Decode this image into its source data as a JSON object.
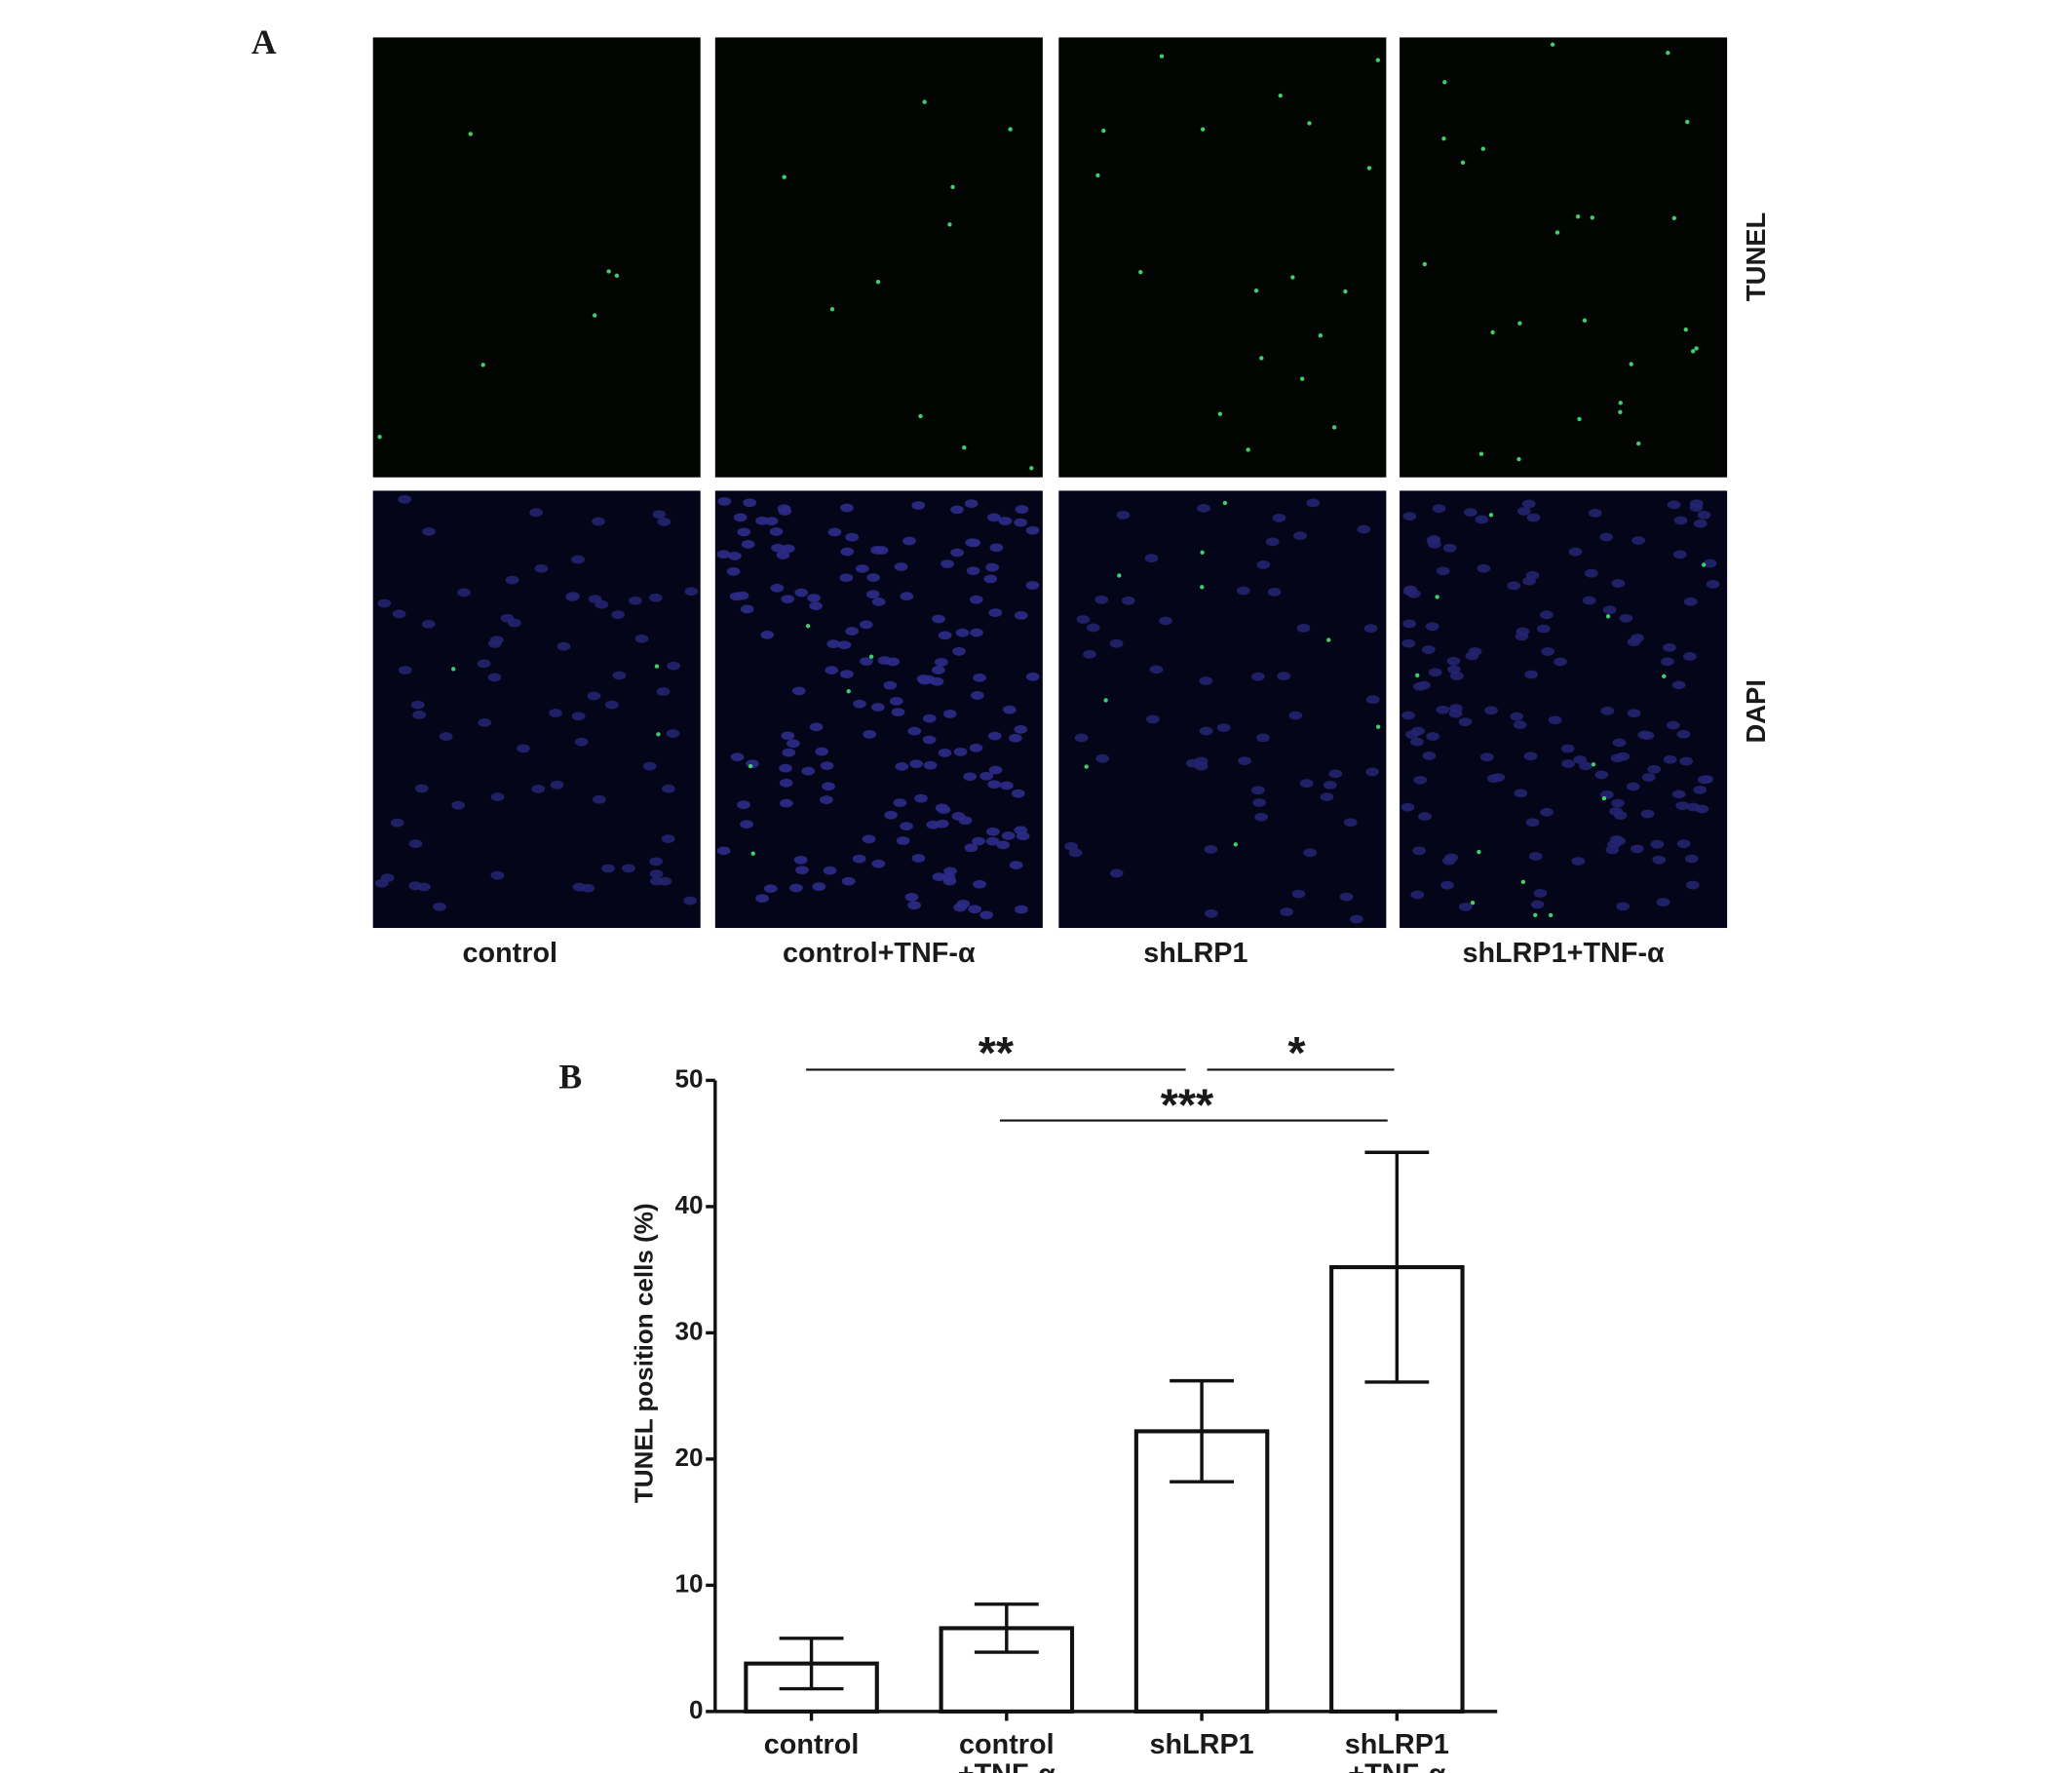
{
  "panel_labels": [
    "A",
    "B"
  ],
  "panel_a": {
    "row_labels": [
      "TUNEL",
      "DAPI"
    ],
    "column_labels": [
      "control",
      "control+TNF-α",
      "shLRP1",
      "shLRP1+TNF-α"
    ]
  },
  "chart_data": {
    "type": "bar",
    "categories": [
      [
        "control"
      ],
      [
        "control",
        "+TNF-α"
      ],
      [
        "shLRP1"
      ],
      [
        "shLRP1",
        "+TNF-α"
      ]
    ],
    "values": [
      3.8,
      6.6,
      22.2,
      35.2
    ],
    "errors": [
      2.0,
      1.9,
      4.0,
      9.1
    ],
    "color": "#ffffff",
    "y_label": "TUNEL position cells (%)",
    "ylim": [
      0,
      50
    ],
    "yticks": [
      0,
      10,
      20,
      30,
      40,
      50
    ],
    "annotations": [
      "**",
      "*",
      "***"
    ]
  }
}
